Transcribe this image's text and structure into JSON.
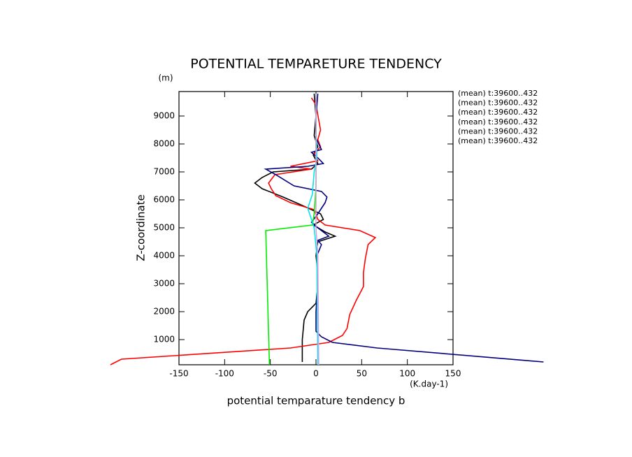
{
  "chart_data": {
    "type": "line",
    "title": "POTENTIAL TEMPARETURE TENDENCY",
    "y_unit": "(m)",
    "y_label": "Z-coordinate",
    "x_unit": "(K.day-1)",
    "x_label": "potential temparature tendency b",
    "xlim": [
      -150,
      150
    ],
    "xticks": [
      -150,
      -100,
      -50,
      0,
      50,
      100,
      150
    ],
    "ylim": [
      100,
      9875
    ],
    "yticks": [
      1000,
      2000,
      3000,
      4000,
      5000,
      6000,
      7000,
      8000,
      9000
    ],
    "series": [
      {
        "name": "(mean) t:39600..432",
        "color": "#000000",
        "z": [
          200,
          800,
          1000,
          1700,
          2000,
          2300,
          2900,
          3400,
          4000,
          4500,
          4700,
          4850,
          5100,
          5300,
          5500,
          5800,
          6100,
          6400,
          6600,
          6800,
          7000,
          7100,
          7300,
          7600,
          7900,
          8300,
          9000,
          9800
        ],
        "values": [
          -15,
          -15,
          -15,
          -13,
          -9,
          0,
          2,
          2,
          0,
          2,
          21,
          10,
          -3,
          8,
          5,
          -15,
          -36,
          -59,
          -67,
          -59,
          -47,
          -5,
          2,
          -3,
          2,
          -2,
          0,
          -2
        ]
      },
      {
        "name": "(mean) t:39600..432",
        "color": "#ff0000",
        "z": [
          100,
          300,
          700,
          900,
          1150,
          1400,
          1900,
          2400,
          2900,
          3400,
          3900,
          4400,
          4650,
          4900,
          5100,
          5300,
          5650,
          5900,
          6150,
          6400,
          6600,
          6900,
          7100,
          7200,
          7400,
          7650,
          7900,
          8150,
          8500,
          9400,
          9650
        ],
        "values": [
          -225,
          -213,
          -28,
          14,
          29,
          34,
          37,
          44,
          52,
          52,
          54,
          57,
          65,
          48,
          10,
          2,
          -2,
          -28,
          -44,
          -49,
          -52,
          -45,
          -5,
          -28,
          2,
          -2,
          5,
          2,
          5,
          0,
          -5
        ]
      },
      {
        "name": "(mean) t:39600..432",
        "color": "#00007f",
        "z": [
          200,
          700,
          900,
          1100,
          1300,
          2000,
          3000,
          4000,
          4400,
          4550,
          4700,
          5000,
          5200,
          5500,
          5900,
          6100,
          6300,
          6500,
          6900,
          7100,
          7200,
          7300,
          7500,
          7700,
          7800,
          8200,
          9000,
          9800
        ],
        "values": [
          249,
          67,
          18,
          6,
          0,
          0,
          2,
          1,
          6,
          2,
          14,
          2,
          -5,
          2,
          10,
          12,
          6,
          -24,
          -44,
          -55,
          -9,
          8,
          2,
          -5,
          6,
          0,
          0,
          2
        ]
      },
      {
        "name": "(mean) t:39600..432",
        "color": "#00ee00",
        "z": [
          100,
          4900,
          5100,
          5500,
          6500,
          9800
        ],
        "values": [
          -51,
          -55,
          -4,
          -2,
          0,
          0
        ]
      },
      {
        "name": "(mean) t:39600..432",
        "color": "#00e5ee",
        "z": [
          100,
          4000,
          5000,
          5300,
          5700,
          6200,
          7000,
          7500,
          8500,
          9800
        ],
        "values": [
          2,
          1,
          -2,
          -5,
          -9,
          -4,
          -2,
          1,
          0,
          0
        ]
      },
      {
        "name": "(mean) t:39600..432",
        "color": "#dda0dd",
        "z": [
          100,
          4000,
          5000,
          9800
        ],
        "values": [
          3,
          2,
          0,
          0
        ]
      }
    ]
  }
}
